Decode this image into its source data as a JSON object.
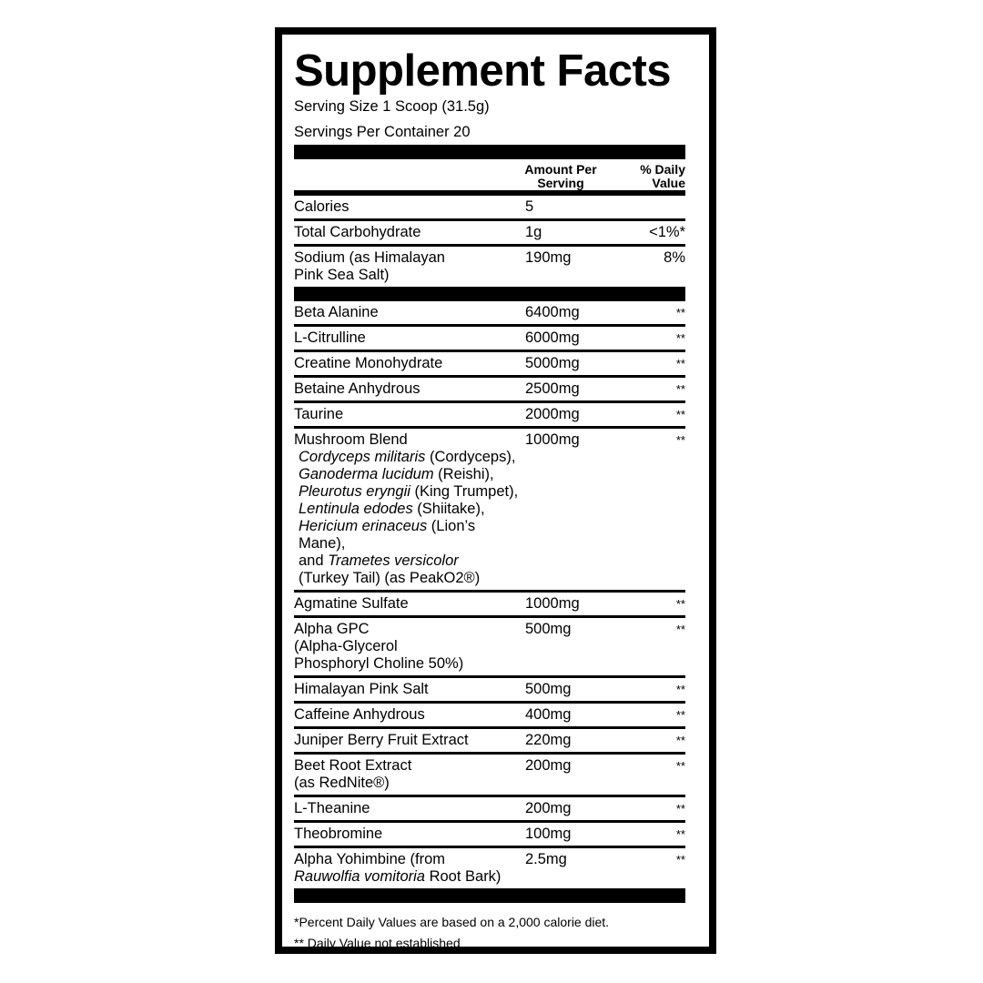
{
  "title": "Supplement Facts",
  "serving_size": "Serving Size 1 Scoop (31.5g)",
  "servings_per_container": "Servings Per Container 20",
  "header": {
    "amount": "Amount Per Serving",
    "daily_value": "% Daily Value"
  },
  "nutrients": [
    {
      "name": [
        "Calories"
      ],
      "amount": "5",
      "dv": ""
    },
    {
      "name": [
        "Total Carbohydrate"
      ],
      "amount": "1g",
      "dv": "<1%*"
    },
    {
      "name": [
        "Sodium (as Himalayan",
        "Pink Sea Salt)"
      ],
      "amount": "190mg",
      "dv": "8%"
    }
  ],
  "ingredients": [
    {
      "name": [
        "Beta Alanine"
      ],
      "amount": "6400mg",
      "dv": "**"
    },
    {
      "name": [
        "L-Citrulline"
      ],
      "amount": "6000mg",
      "dv": "**"
    },
    {
      "name": [
        "Creatine Monohydrate"
      ],
      "amount": "5000mg",
      "dv": "**"
    },
    {
      "name": [
        "Betaine Anhydrous"
      ],
      "amount": "2500mg",
      "dv": "**"
    },
    {
      "name": [
        "Taurine"
      ],
      "amount": "2000mg",
      "dv": "**"
    },
    {
      "name": [
        "Mushroom Blend"
      ],
      "amount": "1000mg",
      "dv": "**",
      "sub": [
        [
          {
            "t": "Cordyceps militaris",
            "i": true
          },
          {
            "t": " (Cordyceps),",
            "i": false
          }
        ],
        [
          {
            "t": "Ganoderma lucidum",
            "i": true
          },
          {
            "t": " (Reishi),",
            "i": false
          }
        ],
        [
          {
            "t": "Pleurotus eryngii",
            "i": true
          },
          {
            "t": " (King Trumpet),",
            "i": false
          }
        ],
        [
          {
            "t": "Lentinula edodes",
            "i": true
          },
          {
            "t": " (Shiitake),",
            "i": false
          }
        ],
        [
          {
            "t": "Hericium erinaceus",
            "i": true
          },
          {
            "t": " (Lion’s Mane),",
            "i": false
          }
        ],
        [
          {
            "t": "and ",
            "i": false
          },
          {
            "t": "Trametes versicolor",
            "i": true
          }
        ],
        [
          {
            "t": "(Turkey Tail) (as PeakO2®)",
            "i": false
          }
        ]
      ]
    },
    {
      "name": [
        "Agmatine Sulfate"
      ],
      "amount": "1000mg",
      "dv": "**"
    },
    {
      "name": [
        "Alpha GPC",
        "(Alpha-Glycerol",
        "Phosphoryl Choline 50%)"
      ],
      "amount": "500mg",
      "dv": "**"
    },
    {
      "name": [
        "Himalayan Pink Salt"
      ],
      "amount": "500mg",
      "dv": "**"
    },
    {
      "name": [
        "Caffeine Anhydrous"
      ],
      "amount": "400mg",
      "dv": "**"
    },
    {
      "name": [
        "Juniper Berry Fruit Extract"
      ],
      "amount": "220mg",
      "dv": "**"
    },
    {
      "name": [
        "Beet Root Extract",
        "(as RedNite®)"
      ],
      "amount": "200mg",
      "dv": "**"
    },
    {
      "name": [
        "L-Theanine"
      ],
      "amount": "200mg",
      "dv": "**"
    },
    {
      "name": [
        "Theobromine"
      ],
      "amount": "100mg",
      "dv": "**"
    },
    {
      "name": [
        "Alpha Yohimbine (from"
      ],
      "amount": "2.5mg",
      "dv": "**",
      "rich": [
        [
          {
            "t": "Rauwolfia vomitoria",
            "i": true
          },
          {
            "t": " Root Bark)",
            "i": false
          }
        ]
      ]
    }
  ],
  "footnotes": [
    "*Percent Daily Values are based on a 2,000 calorie diet.",
    "** Daily Value not established"
  ]
}
